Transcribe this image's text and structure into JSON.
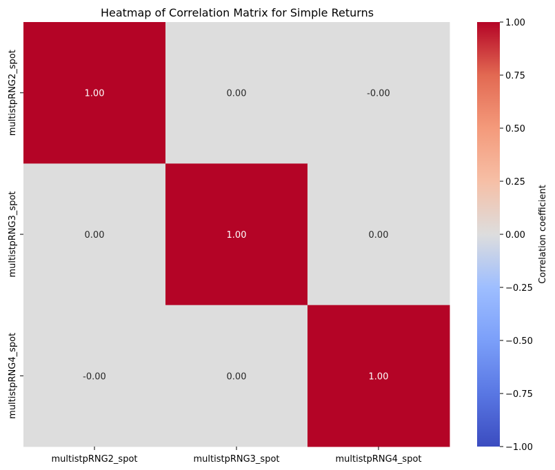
{
  "chart_data": {
    "type": "heatmap",
    "title": "Heatmap of Correlation Matrix for Simple Returns",
    "x_categories": [
      "multistpRNG2_spot",
      "multistpRNG3_spot",
      "multistpRNG4_spot"
    ],
    "y_categories": [
      "multistpRNG2_spot",
      "multistpRNG3_spot",
      "multistpRNG4_spot"
    ],
    "values": [
      [
        1.0,
        0.0,
        -0.0
      ],
      [
        0.0,
        1.0,
        0.0
      ],
      [
        -0.0,
        0.0,
        1.0
      ]
    ],
    "annotations": [
      [
        "1.00",
        "0.00",
        "-0.00"
      ],
      [
        "0.00",
        "1.00",
        "0.00"
      ],
      [
        "-0.00",
        "0.00",
        "1.00"
      ]
    ],
    "colormap": "coolwarm",
    "vmin": -1.0,
    "vmax": 1.0,
    "colorbar": {
      "label": "Correlation coefficient",
      "ticks": [
        1.0,
        0.75,
        0.5,
        0.25,
        0.0,
        -0.25,
        -0.5,
        -0.75,
        -1.0
      ],
      "tick_labels": [
        "1.00",
        "0.75",
        "0.50",
        "0.25",
        "0.00",
        "−0.25",
        "−0.50",
        "−0.75",
        "−1.00"
      ]
    },
    "grid": false,
    "legend": "colorbar-right"
  }
}
